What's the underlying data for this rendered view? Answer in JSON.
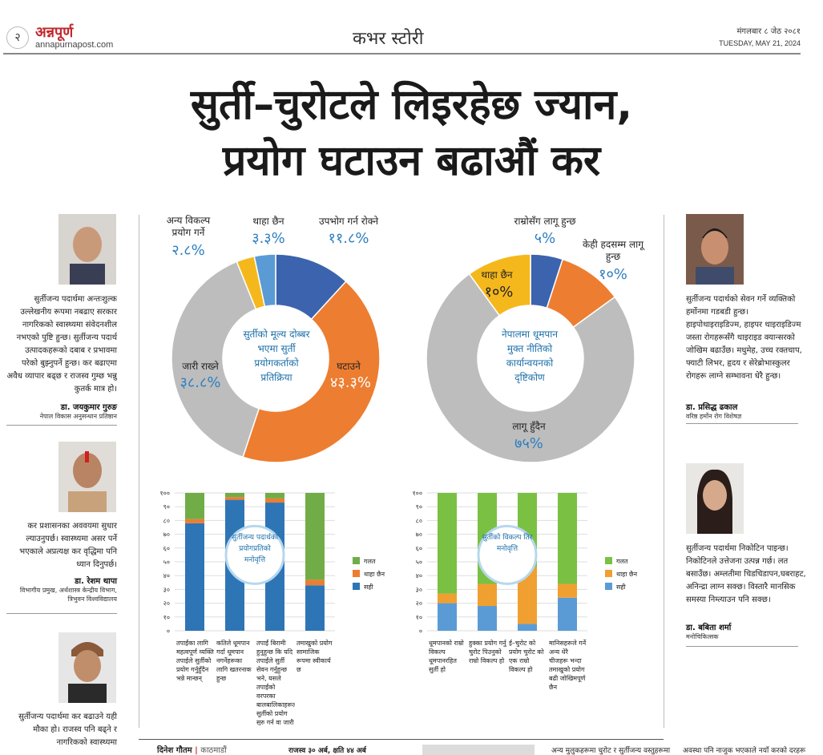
{
  "header": {
    "page_number": "२",
    "brand": "अन्नपूर्ण",
    "url": "annapurnapost.com",
    "section": "कभर स्टोरी",
    "date_np": "मंगलबार ८ जेठ २०८१",
    "date_en": "TUESDAY, MAY 21, 2024"
  },
  "headline": {
    "line1": "सुर्ती–चुरोटले लिइरहेछ ज्यान,",
    "line2": "प्रयोग घटाउन बढाऔं कर"
  },
  "left_quotes": [
    {
      "text": "सुर्तीजन्य पदार्थमा अन्तःशुल्क उल्लेखनीय रूपमा नबढाए सरकार नागरिकको स्वास्थ्यमा संवेदनशील नभएको पुष्टि हुन्छ। सुर्तीजन्य पदार्थ उत्पादकहरूको दबाब र प्रभावमा परेको बुझ्नुपर्ने हुन्छ। कर बढाएमा अवैध व्यापार बढ्छ र राजस्व गुम्छ भन्नु कुतर्क मात्र हो।",
      "name": "डा. जयकुमार गुरुङ",
      "title": "नेपाल विकास अनुसन्धान प्रतिष्ठान"
    },
    {
      "text": "कर प्रशासनका अववयमा सुधार ल्याउनुपर्छ। स्वास्थ्यमा असर पर्ने भएकाले अप्रत्यक्ष कर वृद्धिमा पनि ध्यान दिनुपर्छ।",
      "name": "डा. रेशम थापा",
      "title": "विभागीय प्रमुख, अर्थशास्त्र केन्द्रीय विभाग, त्रिभुवन विश्वविद्यालय"
    },
    {
      "text": "सुर्तीजन्य पदार्थमा कर बढाउने यही मौका हो। राजस्व पनि बढ्ने र नागरिकको स्वास्थ्यमा"
    }
  ],
  "right_quotes": [
    {
      "text": "सुर्तीजन्य पदार्थको सेवन गर्ने व्यक्तिको हर्मोनमा गडबडी हुन्छ। हाइपोथाइराइडिज्म, हाइपर थाइराइडिज्म जस्ता रोगहरूसँगै थाइराइड क्यान्सरको जोखिम बढाउँछ। मधुमेह, उच्च रक्तचाप, फ्याटी लिभर, हृदय र सेरेब्रोभास्कुलर रोगहरू लाग्ने सम्भावना धेरै हुन्छ।",
      "name": "डा. प्रसिद्ध ढकाल",
      "title": "वरिष्ठ हर्मोन रोग विशेषज्ञ"
    },
    {
      "text": "सुर्तीजन्य पदार्थमा निकोटिन पाइन्छ। निकोटिनले उत्तेजना उत्पन्न गर्छ। लत बसाउँछ। अम्लतीमा चिडचिडापन,घबराहट, अनिन्द्रा लाग्न सक्छ। विस्तारै मानसिक समस्या निम्त्याउन पनि सक्छ।",
      "name": "डा. बबिता शर्मा",
      "title": "मनोचिकित्सक"
    }
  ],
  "chart_data": [
    {
      "type": "pie",
      "title": "सुर्तीको मूल्य दोब्बर भएमा सुर्ती प्रयोगकर्ताको प्रतिक्रिया",
      "slices": [
        {
          "label": "उपभोग गर्न रोक्ने",
          "value": 11.8,
          "display": "११.८%",
          "color": "#3c63ad"
        },
        {
          "label": "घटाउने",
          "value": 43.3,
          "display": "४३.३%",
          "color": "#ed7d31"
        },
        {
          "label": "जारी राख्ने",
          "value": 38.8,
          "display": "३८.८%",
          "color": "#bdbdbd"
        },
        {
          "label": "अन्य विकल्प प्रयोग गर्ने",
          "value": 2.8,
          "display": "२.८%",
          "color": "#f5b81c"
        },
        {
          "label": "थाहा छैन",
          "value": 3.3,
          "display": "३.३%",
          "color": "#5b9bd5"
        }
      ]
    },
    {
      "type": "pie",
      "title": "नेपालमा धूमपान मुक्त नीतिको कार्यान्वयनको दृष्टिकोण",
      "slices": [
        {
          "label": "राम्रोसँग लागू हुन्छ",
          "value": 5,
          "display": "५%",
          "color": "#3c63ad"
        },
        {
          "label": "केही हदसम्म लागू हुन्छ",
          "value": 10,
          "display": "१०%",
          "color": "#ed7d31"
        },
        {
          "label": "लागू हुँदैन",
          "value": 75,
          "display": "७५%",
          "color": "#bdbdbd"
        },
        {
          "label": "थाहा छैन",
          "value": 10,
          "display": "१०%",
          "color": "#f5b81c"
        }
      ]
    },
    {
      "type": "bar",
      "title": "सुर्तीजन्य पदार्थको प्रयोगप्रतिको मनोवृत्ति",
      "yticks": [
        "१००",
        "९०",
        "८०",
        "७०",
        "६०",
        "५०",
        "४०",
        "३०",
        "२०",
        "१०",
        "०"
      ],
      "ylim": [
        0,
        100
      ],
      "categories": [
        "तपाईंका लागि महत्वपूर्ण व्यक्ति तपाईले सुर्तीको प्रयोग गर्नुहुँदैन भन्ने मान्छन्",
        "कतिले धूमपान गर्दा धूमपान नगर्नेहरूका लागि खतरनाक हुन्छ",
        "तपाईं बिरामी हुनुहुन्छ कि यदि तपाईंले सुर्ती सेवन गर्नुहुन्छ भने, यसले तपाईंको वरपरका बालबालिकाहरूलाई सुर्तीको प्रयोग सुरु गर्न वा जारी राख्न प्रभाव पार्छ",
        "तमाखुको प्रयोग सामाजिक रूपमा स्वीकार्य छ"
      ],
      "series": [
        {
          "name": "सही",
          "values": [
            78,
            95,
            93,
            33
          ],
          "color": "#2e75b6"
        },
        {
          "name": "थाहा छैन",
          "values": [
            3,
            2,
            3,
            4
          ],
          "color": "#ed7d31"
        },
        {
          "name": "गलत",
          "values": [
            19,
            3,
            4,
            63
          ],
          "color": "#70ad47"
        }
      ]
    },
    {
      "type": "bar",
      "title": "सुर्तीको विकल्प तिर मनोवृत्ति",
      "yticks": [
        "१००",
        "९०",
        "८०",
        "७०",
        "६०",
        "५०",
        "४०",
        "३०",
        "२०",
        "१०",
        "०"
      ],
      "ylim": [
        0,
        100
      ],
      "categories": [
        "धूमपानको राम्रो विकल्प धूमपानरहित सुर्ती हो",
        "हुक्का प्रयोग गर्नु चुरोट पिउनुको राम्रो विकल्प हो",
        "ई–चुरोट को प्रयोग चुरोट को एक राम्रो विकल्प हो",
        "मानिसहरूले गर्ने अन्य धेरै चीजहरू भन्दा तमाखुको प्रयोग बढी जोखिमपूर्ण छैन"
      ],
      "series": [
        {
          "name": "सही",
          "values": [
            20,
            18,
            5,
            24
          ],
          "color": "#5b9bd5"
        },
        {
          "name": "थाहा छैन",
          "values": [
            7,
            16,
            41,
            10
          ],
          "color": "#f0a030"
        },
        {
          "name": "गलत",
          "values": [
            73,
            66,
            54,
            66
          ],
          "color": "#7ac143"
        }
      ]
    }
  ],
  "footer": {
    "byline_name": "दिनेश गौतम",
    "byline_place": "काठमाडौं",
    "frag1": "राजस्व ३० अर्ब, क्षति ४४ अर्ब",
    "frag2": "अन्य मुलुकहरूमा चुरोट र सुर्तीजन्य वस्तुहरूमा",
    "frag3": "अवस्था पनि नाजुक भएकाले नयाँ करको दरहरू"
  }
}
